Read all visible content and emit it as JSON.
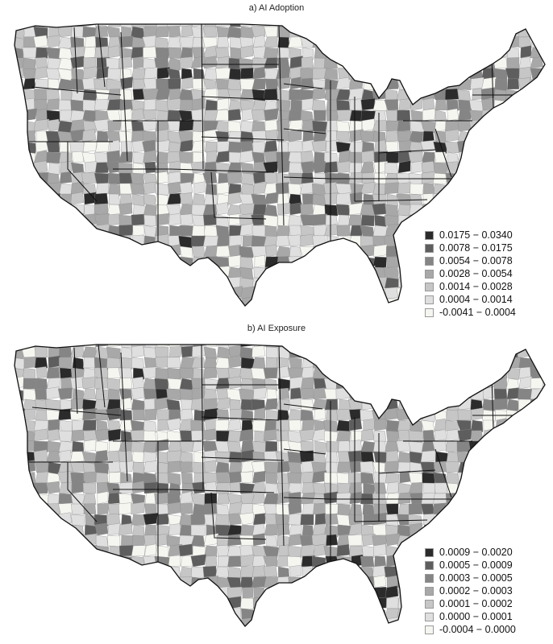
{
  "panels": [
    {
      "title": "a) AI Adoption",
      "legend": [
        {
          "label": "0.0175 − 0.0340",
          "color": "#2b2b2b"
        },
        {
          "label": "0.0078 − 0.0175",
          "color": "#5e5e5e"
        },
        {
          "label": "0.0054 − 0.0078",
          "color": "#858585"
        },
        {
          "label": "0.0028 − 0.0054",
          "color": "#a8a8a8"
        },
        {
          "label": "0.0014 − 0.0028",
          "color": "#c6c6c6"
        },
        {
          "label": "0.0004 − 0.0014",
          "color": "#dfdfdf"
        },
        {
          "label": "-0.0041 − 0.0004",
          "color": "#f6f6f1"
        }
      ]
    },
    {
      "title": "b) AI Exposure",
      "legend": [
        {
          "label": "0.0009 − 0.0020",
          "color": "#2b2b2b"
        },
        {
          "label": "0.0005 − 0.0009",
          "color": "#5e5e5e"
        },
        {
          "label": "0.0003 − 0.0005",
          "color": "#858585"
        },
        {
          "label": "0.0002 − 0.0003",
          "color": "#a8a8a8"
        },
        {
          "label": "0.0001 − 0.0002",
          "color": "#c6c6c6"
        },
        {
          "label": "0.0000 − 0.0001",
          "color": "#dfdfdf"
        },
        {
          "label": "-0.0004 − 0.0000",
          "color": "#f6f6f1"
        }
      ]
    }
  ]
}
